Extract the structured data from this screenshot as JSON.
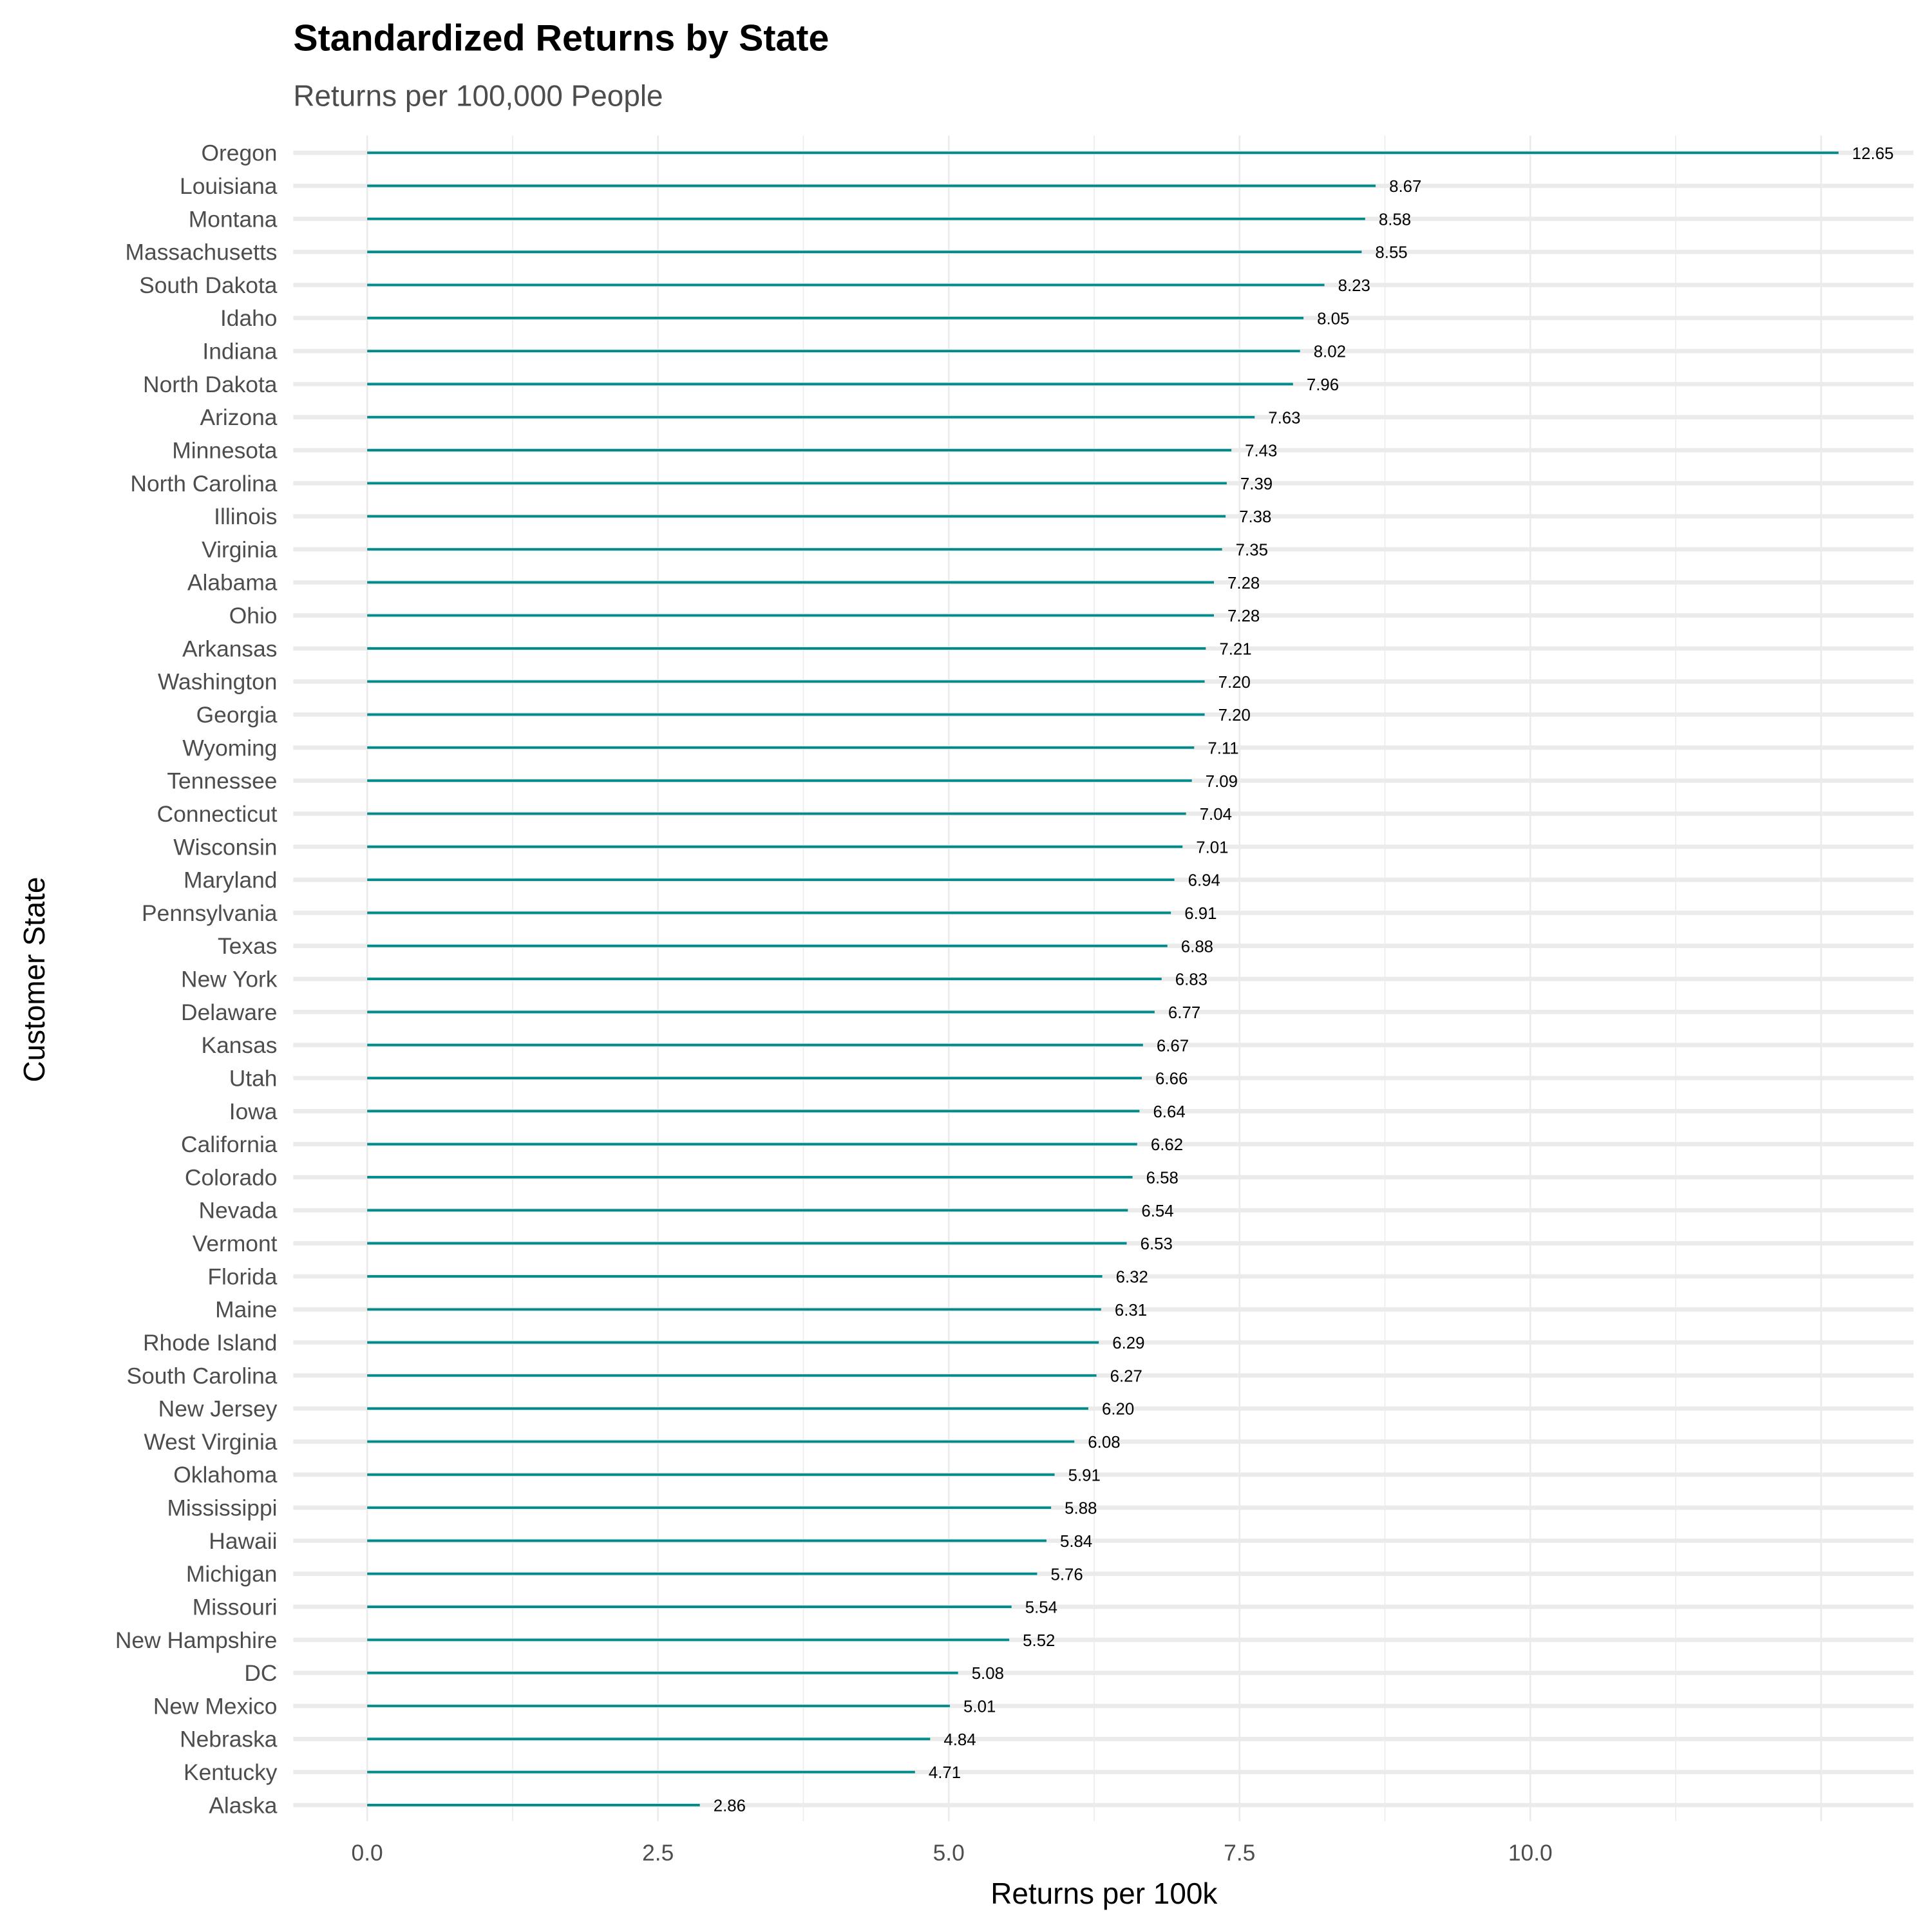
{
  "chart_data": {
    "type": "bar",
    "orientation": "horizontal",
    "title": "Standardized Returns by State",
    "subtitle": "Returns per 100,000 People",
    "xlabel": "Returns per 100k",
    "ylabel": "Customer State",
    "xlim": [
      -0.25,
      13.3
    ],
    "xticks": [
      "0.0",
      "2.5",
      "5.0",
      "7.5",
      "10.0"
    ],
    "xtick_values": [
      0,
      2.5,
      5,
      7.5,
      10
    ],
    "grid": true,
    "bar_color": "#008B8B",
    "categories": [
      "Oregon",
      "Louisiana",
      "Montana",
      "Massachusetts",
      "South Dakota",
      "Idaho",
      "Indiana",
      "North Dakota",
      "Arizona",
      "Minnesota",
      "North Carolina",
      "Illinois",
      "Virginia",
      "Alabama",
      "Ohio",
      "Arkansas",
      "Washington",
      "Georgia",
      "Wyoming",
      "Tennessee",
      "Connecticut",
      "Wisconsin",
      "Maryland",
      "Pennsylvania",
      "Texas",
      "New York",
      "Delaware",
      "Kansas",
      "Utah",
      "Iowa",
      "California",
      "Colorado",
      "Nevada",
      "Vermont",
      "Florida",
      "Maine",
      "Rhode Island",
      "South Carolina",
      "New Jersey",
      "West Virginia",
      "Oklahoma",
      "Mississippi",
      "Hawaii",
      "Michigan",
      "Missouri",
      "New Hampshire",
      "DC",
      "New Mexico",
      "Nebraska",
      "Kentucky",
      "Alaska"
    ],
    "values": [
      12.65,
      8.67,
      8.58,
      8.55,
      8.23,
      8.05,
      8.02,
      7.96,
      7.63,
      7.43,
      7.39,
      7.38,
      7.35,
      7.28,
      7.28,
      7.21,
      7.2,
      7.2,
      7.11,
      7.09,
      7.04,
      7.01,
      6.94,
      6.91,
      6.88,
      6.83,
      6.77,
      6.67,
      6.66,
      6.64,
      6.62,
      6.58,
      6.54,
      6.53,
      6.32,
      6.31,
      6.29,
      6.27,
      6.2,
      6.08,
      5.91,
      5.88,
      5.84,
      5.76,
      5.54,
      5.52,
      5.08,
      5.01,
      4.84,
      4.71,
      2.86
    ],
    "labels": [
      "12.65",
      "8.67",
      "8.58",
      "8.55",
      "8.23",
      "8.05",
      "8.02",
      "7.96",
      "7.63",
      "7.43",
      "7.39",
      "7.38",
      "7.35",
      "7.28",
      "7.28",
      "7.21",
      "7.20",
      "7.20",
      "7.11",
      "7.09",
      "7.04",
      "7.01",
      "6.94",
      "6.91",
      "6.88",
      "6.83",
      "6.77",
      "6.67",
      "6.66",
      "6.64",
      "6.62",
      "6.58",
      "6.54",
      "6.53",
      "6.32",
      "6.31",
      "6.29",
      "6.27",
      "6.20",
      "6.08",
      "5.91",
      "5.88",
      "5.84",
      "5.76",
      "5.54",
      "5.52",
      "5.08",
      "5.01",
      "4.84",
      "4.71",
      "2.86"
    ]
  }
}
